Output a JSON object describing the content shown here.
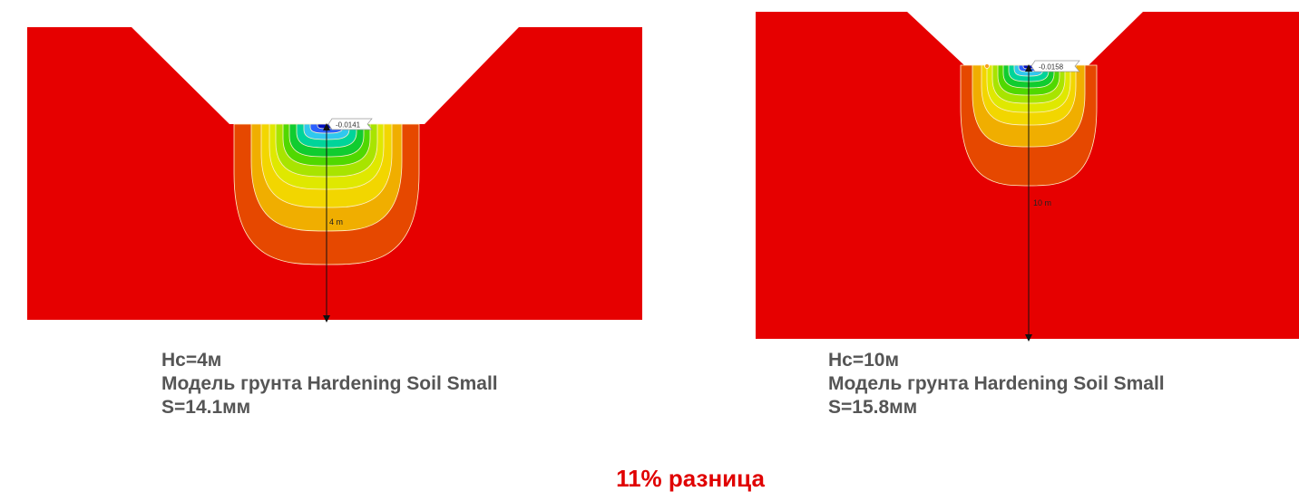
{
  "left": {
    "value_label": "-0.0141",
    "depth_label": "4 m",
    "caption": [
      "Hc=4м",
      "Модель грунта Hardening Soil Small",
      "S=14.1мм"
    ]
  },
  "right": {
    "value_label": "-0.0158",
    "depth_label": "10 m",
    "caption": [
      "Hc=10м",
      "Модель грунта Hardening Soil Small",
      "S=15.8мм"
    ]
  },
  "difference": "11% разница",
  "colors": {
    "soil": "#e60000",
    "contours": [
      "#e64800",
      "#f0ae00",
      "#f2d600",
      "#dfe800",
      "#a8e400",
      "#50d800",
      "#10cc30",
      "#00d49a",
      "#30c8ee",
      "#2a60ff",
      "#0010c0"
    ]
  }
}
